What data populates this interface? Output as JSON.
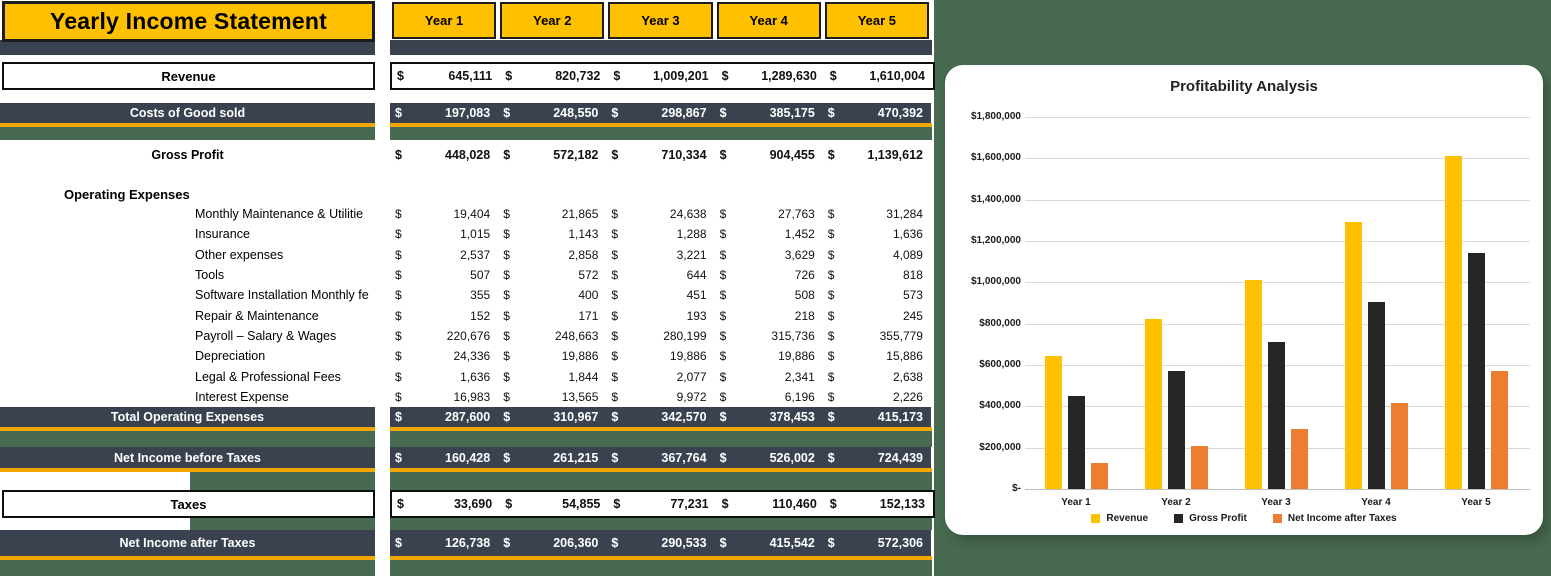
{
  "sheet": {
    "title": "Yearly Income Statement",
    "currency": "$",
    "year_columns": [
      "Year 1",
      "Year 2",
      "Year 3",
      "Year 4",
      "Year 5"
    ],
    "rows": [
      {
        "id": "revenue",
        "label": "Revenue",
        "style": "boxed",
        "values": [
          "645,111",
          "820,732",
          "1,009,201",
          "1,289,630",
          "1,610,004"
        ]
      },
      {
        "id": "costs-of-good-sold",
        "label": "Costs of Good sold",
        "style": "dark",
        "values": [
          "197,083",
          "248,550",
          "298,867",
          "385,175",
          "470,392"
        ]
      },
      {
        "id": "gross-profit",
        "label": "Gross Profit",
        "style": "bold",
        "values": [
          "448,028",
          "572,182",
          "710,334",
          "904,455",
          "1,139,612"
        ]
      },
      {
        "id": "operating-expenses-header",
        "label": "Operating Expenses",
        "style": "section",
        "values": []
      },
      {
        "id": "monthly-maintenance-utilities",
        "label": "Monthly Maintenance & Utilitie",
        "style": "item",
        "values": [
          "19,404",
          "21,865",
          "24,638",
          "27,763",
          "31,284"
        ]
      },
      {
        "id": "insurance",
        "label": "Insurance",
        "style": "item",
        "values": [
          "1,015",
          "1,143",
          "1,288",
          "1,452",
          "1,636"
        ]
      },
      {
        "id": "other-expenses",
        "label": "Other expenses",
        "style": "item",
        "values": [
          "2,537",
          "2,858",
          "3,221",
          "3,629",
          "4,089"
        ]
      },
      {
        "id": "tools",
        "label": "Tools",
        "style": "item",
        "values": [
          "507",
          "572",
          "644",
          "726",
          "818"
        ]
      },
      {
        "id": "software-installation-fee",
        "label": "Software Installation Monthly fe",
        "style": "item",
        "values": [
          "355",
          "400",
          "451",
          "508",
          "573"
        ]
      },
      {
        "id": "repair-maintenance",
        "label": "Repair & Maintenance",
        "style": "item",
        "values": [
          "152",
          "171",
          "193",
          "218",
          "245"
        ]
      },
      {
        "id": "payroll-salary-wages",
        "label": "Payroll – Salary & Wages",
        "style": "item",
        "values": [
          "220,676",
          "248,663",
          "280,199",
          "315,736",
          "355,779"
        ]
      },
      {
        "id": "depreciation",
        "label": "Depreciation",
        "style": "item",
        "values": [
          "24,336",
          "19,886",
          "19,886",
          "19,886",
          "15,886"
        ]
      },
      {
        "id": "legal-professional-fees",
        "label": "Legal & Professional Fees",
        "style": "item",
        "values": [
          "1,636",
          "1,844",
          "2,077",
          "2,341",
          "2,638"
        ]
      },
      {
        "id": "interest-expense",
        "label": "Interest Expense",
        "style": "item",
        "values": [
          "16,983",
          "13,565",
          "9,972",
          "6,196",
          "2,226"
        ]
      },
      {
        "id": "total-operating-expenses",
        "label": "Total Operating Expenses",
        "style": "dark",
        "values": [
          "287,600",
          "310,967",
          "342,570",
          "378,453",
          "415,173"
        ]
      },
      {
        "id": "net-income-before-taxes",
        "label": "Net Income before Taxes",
        "style": "dark",
        "values": [
          "160,428",
          "261,215",
          "367,764",
          "526,002",
          "724,439"
        ]
      },
      {
        "id": "taxes",
        "label": "Taxes",
        "style": "boxed",
        "values": [
          "33,690",
          "54,855",
          "77,231",
          "110,460",
          "152,133"
        ]
      },
      {
        "id": "net-income-after-taxes",
        "label": "Net Income after Taxes",
        "style": "dark",
        "values": [
          "126,738",
          "206,360",
          "290,533",
          "415,542",
          "572,306"
        ]
      }
    ]
  },
  "colors": {
    "gold": "#FFC000",
    "gold_line": "#F2A600",
    "slate": "#3A4250",
    "green": "#486A50",
    "orange": "#ED7D31",
    "dark_bar": "#262626",
    "grid": "#D9D9D9"
  },
  "chart_data": {
    "type": "bar",
    "title": "Profitability Analysis",
    "categories": [
      "Year 1",
      "Year 2",
      "Year 3",
      "Year 4",
      "Year 5"
    ],
    "series": [
      {
        "name": "Revenue",
        "color": "#FFC000",
        "values": [
          645111,
          820732,
          1009201,
          1289630,
          1610004
        ]
      },
      {
        "name": "Gross Profit",
        "color": "#262626",
        "values": [
          448028,
          572182,
          710334,
          904455,
          1139612
        ]
      },
      {
        "name": "Net Income after Taxes",
        "color": "#ED7D31",
        "values": [
          126738,
          206360,
          290533,
          415542,
          572306
        ]
      }
    ],
    "ylim": [
      0,
      1800000
    ],
    "ytick_step": 200000,
    "yticks": [
      "$-",
      "$200,000",
      "$400,000",
      "$600,000",
      "$800,000",
      "$1,000,000",
      "$1,200,000",
      "$1,400,000",
      "$1,600,000",
      "$1,800,000"
    ],
    "grid": true,
    "legend_position": "bottom"
  }
}
